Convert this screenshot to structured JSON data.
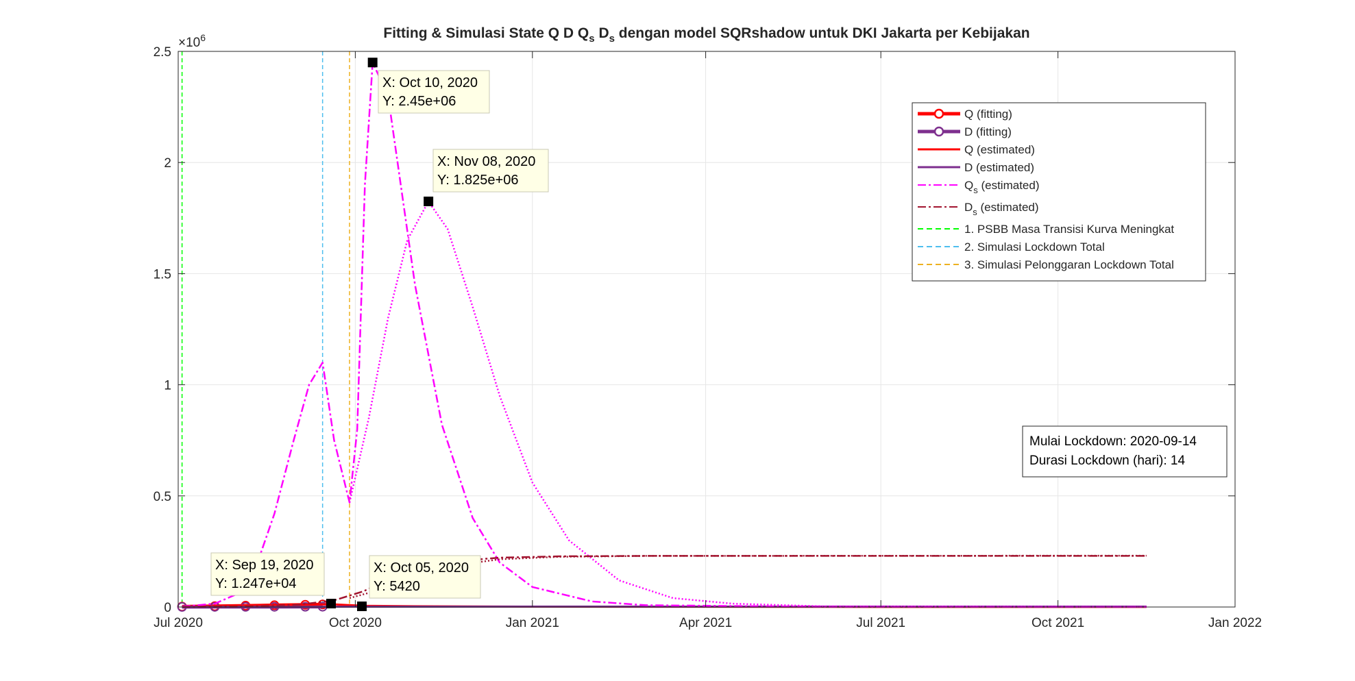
{
  "chart_data": {
    "type": "line",
    "title": "Fitting & Simulasi State  Q D Q_s D_s dengan model SQRshadow untuk DKI Jakarta per Kebijakan",
    "title_parts": [
      "Fitting & Simulasi State  Q D Q",
      "s",
      " D",
      "s",
      " dengan model SQRshadow untuk DKI Jakarta per Kebijakan"
    ],
    "xlabel": "",
    "ylabel": "",
    "xlim": [
      "2020-07-01",
      "2022-01-01"
    ],
    "ylim": [
      0,
      2500000
    ],
    "y_exponent_label": "×10",
    "y_exponent_power": "6",
    "x_ticks": [
      {
        "date": "2020-07-01",
        "label": "Jul 2020"
      },
      {
        "date": "2020-10-01",
        "label": "Oct 2020"
      },
      {
        "date": "2021-01-01",
        "label": "Jan 2021"
      },
      {
        "date": "2021-04-01",
        "label": "Apr 2021"
      },
      {
        "date": "2021-07-01",
        "label": "Jul 2021"
      },
      {
        "date": "2021-10-01",
        "label": "Oct 2021"
      },
      {
        "date": "2022-01-01",
        "label": "Jan 2022"
      }
    ],
    "y_ticks": [
      {
        "value": 0,
        "label": "0"
      },
      {
        "value": 500000,
        "label": "0.5"
      },
      {
        "value": 1000000,
        "label": "1"
      },
      {
        "value": 1500000,
        "label": "1.5"
      },
      {
        "value": 2000000,
        "label": "2"
      },
      {
        "value": 2500000,
        "label": "2.5"
      }
    ],
    "grid": true,
    "legend_position": "top-right",
    "series": [
      {
        "name": "Q (fitting)",
        "color": "#ff0000",
        "style": "solid-marker",
        "points": [
          [
            "2020-07-03",
            2000
          ],
          [
            "2020-07-20",
            4000
          ],
          [
            "2020-08-05",
            6000
          ],
          [
            "2020-08-20",
            8000
          ],
          [
            "2020-09-05",
            10000
          ],
          [
            "2020-09-14",
            11500
          ]
        ]
      },
      {
        "name": "D (fitting)",
        "color": "#7e2f8e",
        "style": "solid-marker",
        "points": [
          [
            "2020-07-03",
            300
          ],
          [
            "2020-07-20",
            500
          ],
          [
            "2020-08-05",
            700
          ],
          [
            "2020-08-20",
            900
          ],
          [
            "2020-09-05",
            1100
          ],
          [
            "2020-09-14",
            1200
          ]
        ]
      },
      {
        "name": "Q (estimated)",
        "color": "#ff0000",
        "style": "solid",
        "points": [
          [
            "2020-07-03",
            2000
          ],
          [
            "2020-08-01",
            5500
          ],
          [
            "2020-09-01",
            9500
          ],
          [
            "2020-09-19",
            12470
          ],
          [
            "2020-10-05",
            5420
          ],
          [
            "2020-11-01",
            3500
          ],
          [
            "2021-01-01",
            1500
          ],
          [
            "2021-06-01",
            500
          ],
          [
            "2021-11-16",
            200
          ]
        ]
      },
      {
        "name": "D (estimated)",
        "color": "#7e2f8e",
        "style": "solid",
        "points": [
          [
            "2020-07-03",
            300
          ],
          [
            "2020-08-01",
            600
          ],
          [
            "2020-09-01",
            1000
          ],
          [
            "2020-10-01",
            1400
          ],
          [
            "2021-01-01",
            1700
          ],
          [
            "2021-11-16",
            1800
          ]
        ]
      },
      {
        "name": "Q_s (estimated)",
        "name_main": "Q",
        "name_sub": "s",
        "name_tail": " (estimated)",
        "color": "#ff00ff",
        "style": "dashdot",
        "points": [
          [
            "2020-07-03",
            2000
          ],
          [
            "2020-07-20",
            15000
          ],
          [
            "2020-08-01",
            60000
          ],
          [
            "2020-08-10",
            170000
          ],
          [
            "2020-08-20",
            420000
          ],
          [
            "2020-08-30",
            750000
          ],
          [
            "2020-09-07",
            1000000
          ],
          [
            "2020-09-14",
            1100000
          ],
          [
            "2020-09-20",
            750000
          ],
          [
            "2020-09-28",
            470000
          ],
          [
            "2020-10-02",
            800000
          ],
          [
            "2020-10-06",
            1900000
          ],
          [
            "2020-10-10",
            2450000
          ],
          [
            "2020-10-18",
            2300000
          ],
          [
            "2020-11-01",
            1450000
          ],
          [
            "2020-11-15",
            820000
          ],
          [
            "2020-12-01",
            400000
          ],
          [
            "2020-12-15",
            200000
          ],
          [
            "2021-01-01",
            90000
          ],
          [
            "2021-02-01",
            25000
          ],
          [
            "2021-03-01",
            8000
          ],
          [
            "2021-06-01",
            1000
          ],
          [
            "2021-11-16",
            200
          ]
        ]
      },
      {
        "name": "Q_s (estimated)",
        "name_main": "Q",
        "name_sub": "s",
        "name_tail": " (estimated)",
        "color": "#ff00ff",
        "style": "dotted",
        "points": [
          [
            "2020-09-28",
            470000
          ],
          [
            "2020-10-08",
            850000
          ],
          [
            "2020-10-18",
            1300000
          ],
          [
            "2020-10-28",
            1650000
          ],
          [
            "2020-11-08",
            1825000
          ],
          [
            "2020-11-18",
            1700000
          ],
          [
            "2020-12-01",
            1350000
          ],
          [
            "2020-12-15",
            950000
          ],
          [
            "2021-01-01",
            560000
          ],
          [
            "2021-01-20",
            300000
          ],
          [
            "2021-02-15",
            120000
          ],
          [
            "2021-03-15",
            40000
          ],
          [
            "2021-04-15",
            15000
          ],
          [
            "2021-06-01",
            3000
          ],
          [
            "2021-11-16",
            300
          ]
        ]
      },
      {
        "name": "D_s (estimated)",
        "name_main": "D",
        "name_sub": "s",
        "name_tail": " (estimated)",
        "color": "#a2142f",
        "style": "dashdot",
        "points": [
          [
            "2020-07-03",
            500
          ],
          [
            "2020-08-01",
            2000
          ],
          [
            "2020-09-01",
            10000
          ],
          [
            "2020-09-20",
            30000
          ],
          [
            "2020-10-05",
            70000
          ],
          [
            "2020-10-20",
            130000
          ],
          [
            "2020-11-05",
            180000
          ],
          [
            "2020-11-20",
            205000
          ],
          [
            "2020-12-15",
            222000
          ],
          [
            "2021-01-15",
            228000
          ],
          [
            "2021-03-01",
            230000
          ],
          [
            "2021-11-16",
            230000
          ]
        ]
      },
      {
        "name": "D_s (estimated)",
        "name_main": "D",
        "name_sub": "s",
        "name_tail": " (estimated)",
        "color": "#a2142f",
        "style": "dotted",
        "points": [
          [
            "2020-09-28",
            40000
          ],
          [
            "2020-10-15",
            80000
          ],
          [
            "2020-11-01",
            140000
          ],
          [
            "2020-11-20",
            185000
          ],
          [
            "2020-12-15",
            215000
          ],
          [
            "2021-01-15",
            226000
          ],
          [
            "2021-03-01",
            230000
          ],
          [
            "2021-11-16",
            231000
          ]
        ]
      }
    ],
    "vertical_lines": [
      {
        "name": "1. PSBB Masa Transisi Kurva Meningkat",
        "date": "2020-07-03",
        "color": "#00ff00"
      },
      {
        "name": "2. Simulasi Lockdown Total",
        "date": "2020-09-14",
        "color": "#4dbeee"
      },
      {
        "name": "3. Simulasi Pelonggaran Lockdown Total",
        "date": "2020-09-28",
        "color": "#edb120"
      }
    ],
    "legend": [
      {
        "main": "Q (fitting)",
        "sub": "",
        "tail": "",
        "color": "#ff0000",
        "style": "marker"
      },
      {
        "main": "D (fitting)",
        "sub": "",
        "tail": "",
        "color": "#7e2f8e",
        "style": "marker"
      },
      {
        "main": "Q (estimated)",
        "sub": "",
        "tail": "",
        "color": "#ff0000",
        "style": "solid"
      },
      {
        "main": "D (estimated)",
        "sub": "",
        "tail": "",
        "color": "#7e2f8e",
        "style": "solid"
      },
      {
        "main": "Q",
        "sub": "s",
        "tail": " (estimated)",
        "color": "#ff00ff",
        "style": "dashdot"
      },
      {
        "main": "D",
        "sub": "s",
        "tail": " (estimated)",
        "color": "#a2142f",
        "style": "dashdot"
      },
      {
        "main": "1. PSBB Masa Transisi Kurva Meningkat",
        "sub": "",
        "tail": "",
        "color": "#00ff00",
        "style": "dashed"
      },
      {
        "main": "2. Simulasi Lockdown Total",
        "sub": "",
        "tail": "",
        "color": "#4dbeee",
        "style": "dashed"
      },
      {
        "main": "3. Simulasi Pelonggaran Lockdown Total",
        "sub": "",
        "tail": "",
        "color": "#edb120",
        "style": "dashed"
      }
    ],
    "datatips": [
      {
        "x_label": "X: Oct 10, 2020",
        "y_label": "Y: 2.45e+06",
        "date": "2020-10-10",
        "value": 2450000
      },
      {
        "x_label": "X: Nov 08, 2020",
        "y_label": "Y: 1.825e+06",
        "date": "2020-11-08",
        "value": 1825000
      },
      {
        "x_label": "X: Sep 19, 2020",
        "y_label": "Y: 1.247e+04",
        "date": "2020-09-19",
        "value": 12470
      },
      {
        "x_label": "X: Oct 05, 2020",
        "y_label": "Y: 5420",
        "date": "2020-10-05",
        "value": 5420
      }
    ],
    "info_box": {
      "line1": "Mulai Lockdown: 2020-09-14",
      "line2": "Durasi Lockdown (hari): 14"
    }
  }
}
